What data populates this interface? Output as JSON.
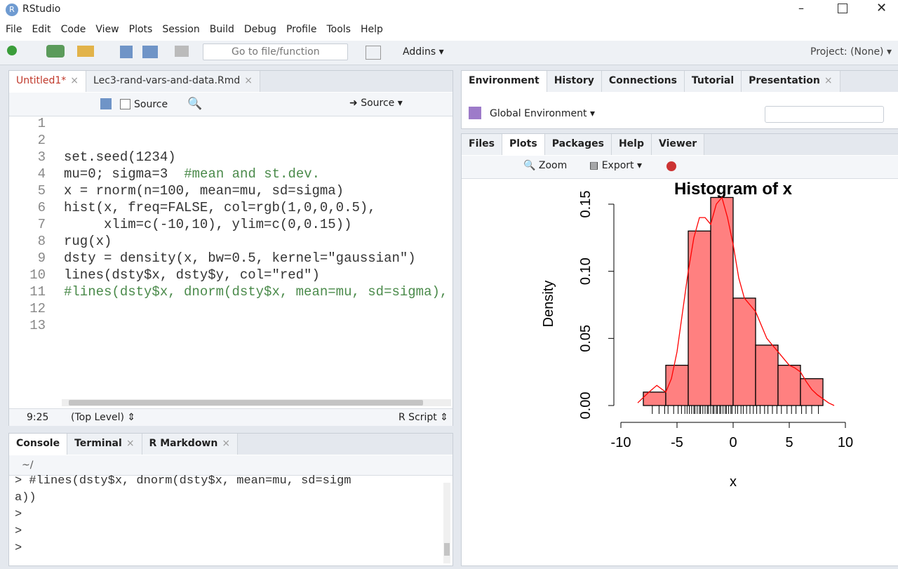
{
  "window": {
    "title": "RStudio"
  },
  "menu": [
    "File",
    "Edit",
    "Code",
    "View",
    "Plots",
    "Session",
    "Build",
    "Debug",
    "Profile",
    "Tools",
    "Help"
  ],
  "toolbar": {
    "goto": "Go to file/function",
    "addins": "Addins",
    "project": "Project: (None)"
  },
  "editor": {
    "tabs": [
      "Untitled1*",
      "Lec3-rand-vars-and-data.Rmd"
    ],
    "toolbar": {
      "source_on_save": "Source",
      "source": "Source"
    },
    "lines": [
      {
        "number": 1
      },
      {
        "number": 2
      },
      {
        "number": 3,
        "code": "set.seed(1234)"
      },
      {
        "number": 4,
        "code": "mu=0; sigma=3",
        "comment": "#mean and st.dev."
      },
      {
        "number": 5,
        "code": "x = rnorm(n=100, mean=mu, sd=sigma)"
      },
      {
        "number": 6,
        "code": "hist(x, freq=FALSE, col=rgb(1,0,0,0.5),"
      },
      {
        "number": 7,
        "code": "     xlim=c(-10,10), ylim=c(0,0.15))"
      },
      {
        "number": 8,
        "code": "rug(x)"
      },
      {
        "number": 9,
        "code": "dsty = density(x, bw=0.5, kernel=\"gaussian\")"
      },
      {
        "number": 10,
        "code": "lines(dsty$x, dsty$y, col=\"red\")"
      },
      {
        "number": 11,
        "comment": "#lines(dsty$x, dnorm(dsty$x, mean=mu, sd=sigma), col=\"blue\")"
      },
      {
        "number": 12
      },
      {
        "number": 13
      }
    ],
    "status": {
      "position": "9:25",
      "scope": "(Top Level)",
      "filetype": "R Script"
    }
  },
  "console": {
    "tabs": [
      "Console",
      "Terminal",
      "R Markdown"
    ],
    "path": "~/",
    "lines": [
      "> #lines(dsty$x, dnorm(dsty$x, mean=mu, sd=sigm",
      "a))",
      ">",
      ">",
      ">"
    ]
  },
  "environment": {
    "tabs": [
      "Environment",
      "History",
      "Connections",
      "Tutorial",
      "Presentation"
    ],
    "scope": "Global Environment"
  },
  "files": {
    "tabs": [
      "Files",
      "Plots",
      "Packages",
      "Help",
      "Viewer"
    ],
    "toolbar": {
      "zoom": "Zoom",
      "export": "Export"
    }
  },
  "chart_data": {
    "type": "histogram",
    "title": "Histogram of x",
    "x_label": "x",
    "y_label": "Density",
    "bins": [
      -8,
      -6,
      -4,
      -2,
      0,
      2,
      4,
      6,
      8
    ],
    "values": [
      0.01,
      0.03,
      0.13,
      0.155,
      0.08,
      0.045,
      0.03,
      0.02
    ],
    "color": "#ff8080",
    "xlim": [
      -10,
      10
    ],
    "xticks": [
      -10,
      -5,
      0,
      5,
      10
    ],
    "ylim": [
      0,
      0.15
    ],
    "yticks": [
      {
        "value": 0,
        "label": "0.00"
      },
      0.05,
      {
        "value": 0.1,
        "label": "0.10"
      },
      0.15
    ],
    "density": {
      "color": "#ff0000",
      "x": [
        -8.5,
        -7.5,
        -6.8,
        -6,
        -5.5,
        -5,
        -4.5,
        -4,
        -3.5,
        -3,
        -2.5,
        -2,
        -1.5,
        -1,
        -0.5,
        0,
        0.5,
        1,
        1.5,
        2,
        2.5,
        3,
        3.5,
        4,
        4.5,
        5,
        5.5,
        6,
        6.5,
        7,
        7.5,
        8.5,
        9
      ],
      "y": [
        0.002,
        0.01,
        0.015,
        0.01,
        0.02,
        0.04,
        0.07,
        0.1,
        0.125,
        0.14,
        0.14,
        0.135,
        0.15,
        0.155,
        0.14,
        0.12,
        0.095,
        0.08,
        0.075,
        0.07,
        0.06,
        0.05,
        0.045,
        0.04,
        0.035,
        0.03,
        0.028,
        0.025,
        0.018,
        0.012,
        0.008,
        0.002,
        0
      ]
    },
    "rug": [
      -7.2,
      -6.6,
      -6.1,
      -5.8,
      -5.3,
      -4.9,
      -4.6,
      -4.3,
      -4.1,
      -3.9,
      -3.7,
      -3.5,
      -3.4,
      -3.2,
      -3.0,
      -2.9,
      -2.7,
      -2.5,
      -2.3,
      -2.2,
      -2.0,
      -1.8,
      -1.7,
      -1.5,
      -1.4,
      -1.2,
      -1.1,
      -0.9,
      -0.7,
      -0.6,
      -0.4,
      -0.2,
      -0.1,
      0.2,
      0.4,
      0.7,
      0.9,
      1.2,
      1.5,
      1.8,
      2.1,
      2.4,
      2.8,
      3.1,
      3.5,
      3.9,
      4.3,
      4.8,
      5.2,
      5.6,
      6.1,
      6.5,
      7.0,
      7.6
    ]
  }
}
